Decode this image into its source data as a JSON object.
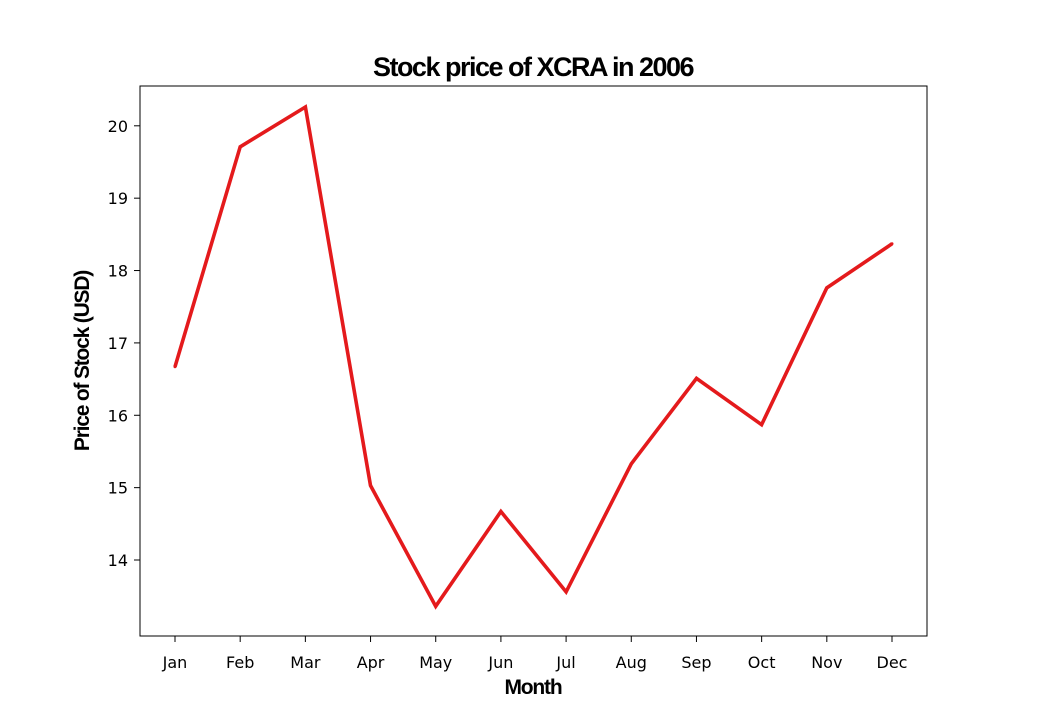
{
  "chart_data": {
    "type": "line",
    "title": "Stock price of XCRA in 2006",
    "xlabel": "Month",
    "ylabel": "Price of Stock (USD)",
    "categories": [
      "Jan",
      "Feb",
      "Mar",
      "Apr",
      "May",
      "Jun",
      "Jul",
      "Aug",
      "Sep",
      "Oct",
      "Nov",
      "Dec"
    ],
    "series": [
      {
        "values": [
          16.67,
          19.71,
          20.26,
          15.03,
          13.36,
          14.67,
          13.56,
          15.33,
          16.51,
          15.87,
          17.76,
          18.37
        ],
        "color": "#e41a1c"
      }
    ],
    "yticks": [
      14,
      15,
      16,
      17,
      18,
      19,
      20
    ],
    "ylim": [
      12.95,
      20.55
    ],
    "grid": false,
    "legend": "none"
  }
}
